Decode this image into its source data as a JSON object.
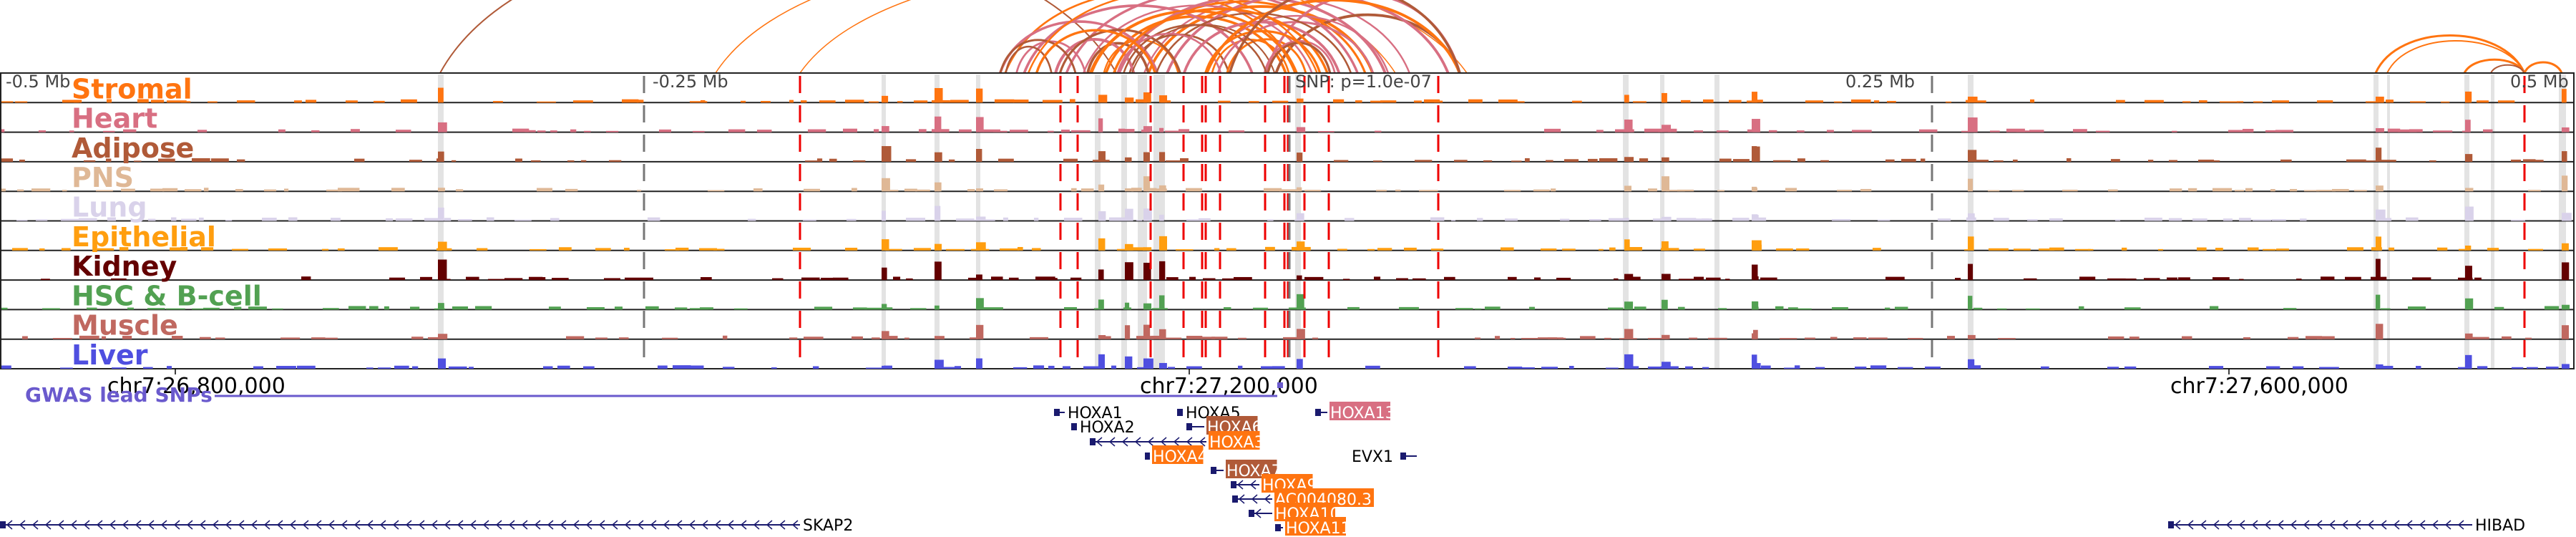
{
  "browser": {
    "scale_labels": [
      {
        "text": "-0.5 Mb",
        "pos": -0.5
      },
      {
        "text": "-0.25 Mb",
        "pos": -0.25
      },
      {
        "text": "0.25 Mb",
        "pos": 0.25
      },
      {
        "text": "0.5 Mb",
        "pos": 0.5
      }
    ],
    "snp_label": "SNP: p=1.0e-07",
    "coordinates": [
      {
        "text": "chr7:26,800,000",
        "bp": 26800000
      },
      {
        "text": "chr7:27,200,000",
        "bp": 27200000
      },
      {
        "text": "chr7:27,600,000",
        "bp": 27600000
      }
    ],
    "gwas_label": "GWAS lead SNPs",
    "colors": {
      "snp_line": "#ee0000",
      "highlight": "#e3e3e3",
      "gene_line": "#1a1a6e",
      "gwas": "#6a5acd"
    }
  },
  "tracks": [
    {
      "name": "Stromal",
      "color": "#ff7410"
    },
    {
      "name": "Heart",
      "color": "#d86f82"
    },
    {
      "name": "Adipose",
      "color": "#b05a38"
    },
    {
      "name": "PNS",
      "color": "#dfb896"
    },
    {
      "name": "Lung",
      "color": "#d9d2ea"
    },
    {
      "name": "Epithelial",
      "color": "#ff9e0f"
    },
    {
      "name": "Kidney",
      "color": "#640000"
    },
    {
      "name": "HSC & B-cell",
      "color": "#52a152"
    },
    {
      "name": "Muscle",
      "color": "#c06860"
    },
    {
      "name": "Liver",
      "color": "#4f4fe0"
    }
  ],
  "genes": [
    {
      "name": "HOXA1",
      "highlight": null
    },
    {
      "name": "HOXA2",
      "highlight": null
    },
    {
      "name": "HOXA5",
      "highlight": null
    },
    {
      "name": "HOXA6",
      "highlight": "#b05a38"
    },
    {
      "name": "HOXA3",
      "highlight": "#ff7410"
    },
    {
      "name": "HOXA4",
      "highlight": "#ff7410"
    },
    {
      "name": "HOXA7",
      "highlight": "#b05a38"
    },
    {
      "name": "HOXA9",
      "highlight": "#ff7410"
    },
    {
      "name": "AC004080.3",
      "highlight": "#ff7410"
    },
    {
      "name": "HOXA10",
      "highlight": "#ff7410"
    },
    {
      "name": "HOXA11",
      "highlight": "#ff7410"
    },
    {
      "name": "HOXA13",
      "highlight": "#d86f82"
    },
    {
      "name": "EVX1",
      "highlight": null
    },
    {
      "name": "SKAP2",
      "highlight": null
    },
    {
      "name": "HIBAD",
      "highlight": null
    }
  ]
}
